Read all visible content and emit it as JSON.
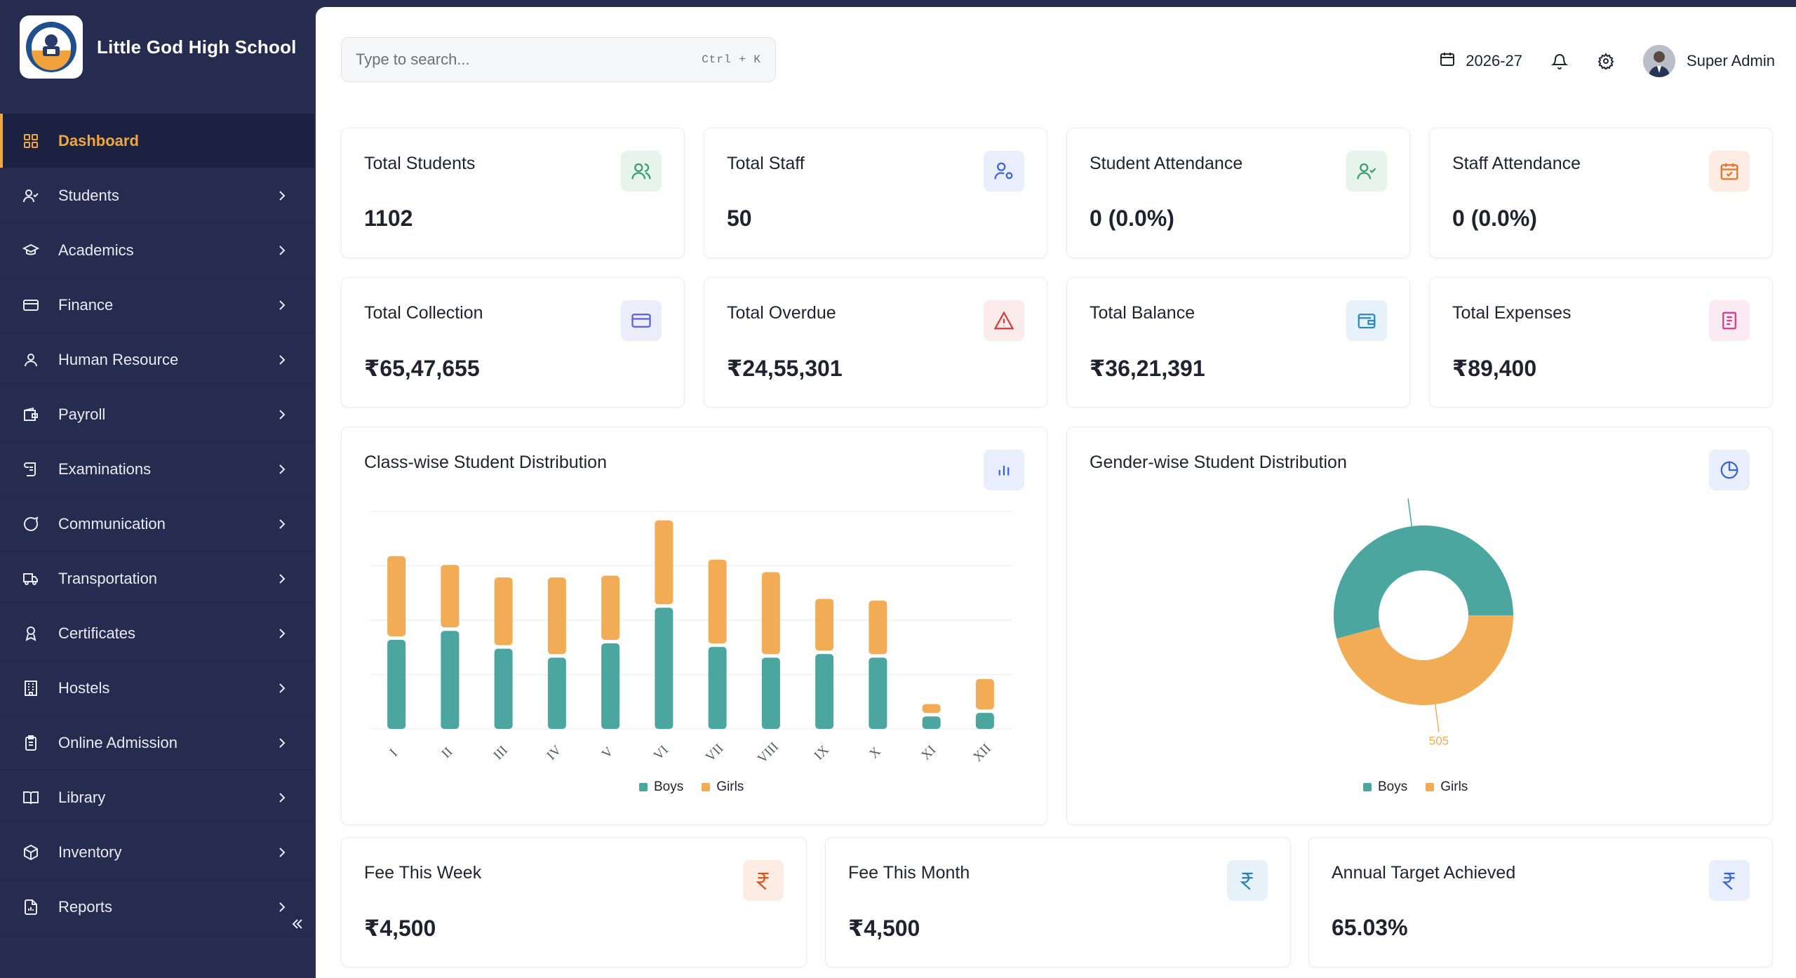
{
  "app": {
    "school_name": "Little God High School"
  },
  "sidebar": {
    "items": [
      {
        "label": "Dashboard",
        "icon": "grid-icon",
        "active": true
      },
      {
        "label": "Students",
        "icon": "user-check-icon"
      },
      {
        "label": "Academics",
        "icon": "graduation-cap-icon"
      },
      {
        "label": "Finance",
        "icon": "credit-card-icon"
      },
      {
        "label": "Human Resource",
        "icon": "user-icon"
      },
      {
        "label": "Payroll",
        "icon": "wallet-icon"
      },
      {
        "label": "Examinations",
        "icon": "scroll-icon"
      },
      {
        "label": "Communication",
        "icon": "message-circle-icon"
      },
      {
        "label": "Transportation",
        "icon": "truck-icon"
      },
      {
        "label": "Certificates",
        "icon": "award-icon"
      },
      {
        "label": "Hostels",
        "icon": "building-icon"
      },
      {
        "label": "Online Admission",
        "icon": "clipboard-icon"
      },
      {
        "label": "Library",
        "icon": "book-open-icon"
      },
      {
        "label": "Inventory",
        "icon": "package-icon"
      },
      {
        "label": "Reports",
        "icon": "file-chart-icon"
      }
    ]
  },
  "search": {
    "placeholder": "Type to search...",
    "shortcut": "Ctrl + K"
  },
  "header": {
    "academic_year": "2026-27",
    "user_name": "Super Admin"
  },
  "stats": [
    {
      "title": "Total Students",
      "value": "1102",
      "icon": "users-icon",
      "color": "#3a9c6c",
      "bg": "#e6f4ec"
    },
    {
      "title": "Total Staff",
      "value": "50",
      "icon": "user-cog-icon",
      "color": "#3b63d8",
      "bg": "#e8eefb"
    },
    {
      "title": "Student Attendance",
      "value": "0 (0.0%)",
      "icon": "user-check-icon",
      "color": "#3a9c6c",
      "bg": "#e6f4ec"
    },
    {
      "title": "Staff Attendance",
      "value": "0 (0.0%)",
      "icon": "calendar-check-icon",
      "color": "#e4742b",
      "bg": "#fdece3"
    },
    {
      "title": "Total Collection",
      "value": "₹65,47,655",
      "icon": "credit-card-icon",
      "color": "#5b5fd8",
      "bg": "#ecedfb"
    },
    {
      "title": "Total Overdue",
      "value": "₹24,55,301",
      "icon": "alert-triangle-icon",
      "color": "#d83b3b",
      "bg": "#fcebeb"
    },
    {
      "title": "Total Balance",
      "value": "₹36,21,391",
      "icon": "wallet-icon",
      "color": "#2b86c4",
      "bg": "#e6f1f9"
    },
    {
      "title": "Total Expenses",
      "value": "₹89,400",
      "icon": "receipt-icon",
      "color": "#d83b86",
      "bg": "#fceaf3"
    }
  ],
  "fee_cards": [
    {
      "title": "Fee This Week",
      "value": "₹4,500",
      "icon": "rupee-icon",
      "color": "#d8541f",
      "bg": "#fdece3"
    },
    {
      "title": "Fee This Month",
      "value": "₹4,500",
      "icon": "rupee-icon",
      "color": "#2b7fb4",
      "bg": "#e6f1f9"
    },
    {
      "title": "Annual Target Achieved",
      "value": "65.03%",
      "icon": "rupee-icon",
      "color": "#3b63d8",
      "bg": "#e8eefb"
    }
  ],
  "colors": {
    "boys": "#4aa69e",
    "girls": "#f2ac56"
  },
  "chart_data": [
    {
      "type": "bar",
      "stacked": true,
      "title": "Class-wise Student Distribution",
      "categories": [
        "I",
        "II",
        "III",
        "IV",
        "V",
        "VI",
        "VII",
        "VIII",
        "IX",
        "X",
        "XI",
        "XII"
      ],
      "series": [
        {
          "name": "Boys",
          "values": [
            50,
            55,
            45,
            40,
            48,
            68,
            46,
            40,
            42,
            40,
            7,
            9
          ]
        },
        {
          "name": "Girls",
          "values": [
            45,
            35,
            38,
            43,
            36,
            47,
            47,
            46,
            29,
            30,
            5,
            17
          ]
        }
      ],
      "ylim": [
        0,
        122
      ],
      "grid": true,
      "legend": "bottom"
    },
    {
      "type": "pie",
      "donut": true,
      "title": "Gender-wise Student Distribution",
      "labels": [
        "Boys",
        "Girls"
      ],
      "values": [
        597,
        505
      ],
      "legend": "bottom"
    }
  ]
}
